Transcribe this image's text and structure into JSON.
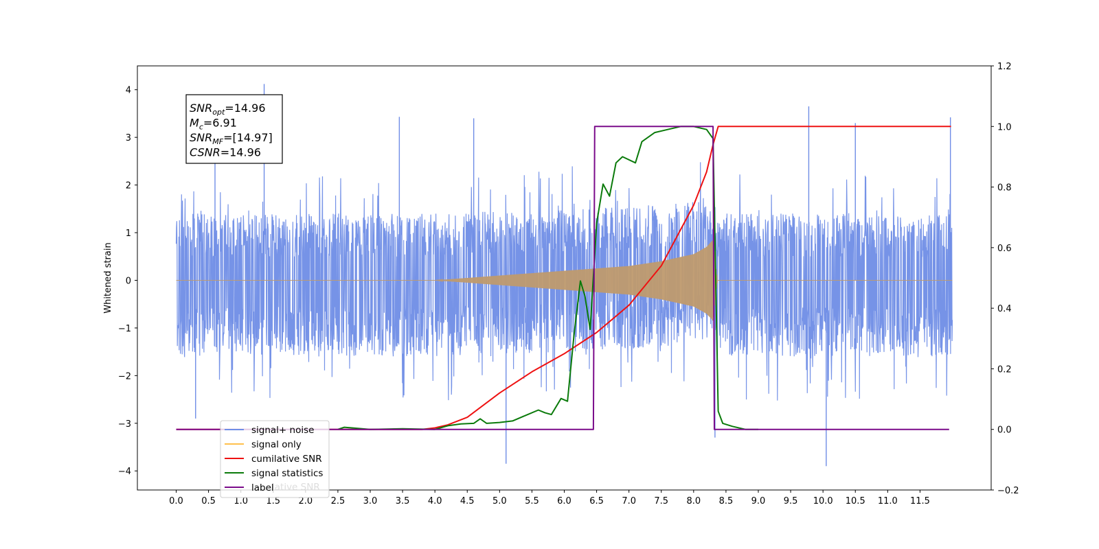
{
  "chart_data": {
    "type": "line",
    "xlabel": "",
    "ylabel": "Whitened strain",
    "y2label": "",
    "xlim": [
      -0.6,
      12.6
    ],
    "ylim": [
      -4.4,
      4.5
    ],
    "y2lim": [
      -0.2,
      1.2
    ],
    "x_ticks": [
      "0.0",
      "0.5",
      "1.0",
      "1.5",
      "2.0",
      "2.5",
      "3.0",
      "3.5",
      "4.0",
      "4.5",
      "5.0",
      "5.5",
      "6.0",
      "6.5",
      "7.0",
      "7.5",
      "8.0",
      "8.5",
      "9.0",
      "9.5",
      "10.0",
      "10.5",
      "11.0",
      "11.5"
    ],
    "y_ticks": [
      "−4",
      "−3",
      "−2",
      "−1",
      "0",
      "1",
      "2",
      "3",
      "4"
    ],
    "y2_ticks": [
      "−0.2",
      "0.0",
      "0.2",
      "0.4",
      "0.6",
      "0.8",
      "1.0",
      "1.2"
    ],
    "grid": false,
    "legend_position": "lower-left",
    "legend": [
      {
        "name": "signal+ noise",
        "color": "#6f8de6"
      },
      {
        "name": "signal only",
        "color": "#ffc04c"
      },
      {
        "name": "cumilative SNR",
        "color": "#ee1111"
      },
      {
        "name": "signal statistics",
        "color": "#0a7a0a"
      },
      {
        "name": "label",
        "color": "#7a0a8a"
      }
    ],
    "legend_ghost_text": "lative SNR",
    "annotation": [
      {
        "base": "SNR",
        "sub": "opt",
        "rest": "=14.96"
      },
      {
        "base": "M",
        "sub": "c",
        "rest": "=6.91"
      },
      {
        "base": "SNR",
        "sub": "MF",
        "rest": "=[14.97]"
      },
      {
        "base": "CSNR",
        "sub": "",
        "rest": "=14.96"
      }
    ],
    "series": [
      {
        "name": "signal+ noise",
        "axis": "left",
        "kind": "noise_band",
        "x_range": [
          0.0,
          12.0
        ],
        "envelope_upper": 1.4,
        "envelope_lower": -1.6,
        "spikes": [
          [
            1.36,
            4.12
          ],
          [
            9.78,
            3.65
          ],
          [
            11.97,
            3.42
          ],
          [
            3.45,
            3.43
          ],
          [
            4.6,
            3.4
          ],
          [
            5.1,
            -3.85
          ],
          [
            10.05,
            -3.9
          ],
          [
            8.33,
            -3.3
          ],
          [
            0.6,
            3.0
          ],
          [
            10.5,
            3.3
          ],
          [
            0.3,
            -2.9
          ]
        ]
      },
      {
        "name": "signal only",
        "axis": "left",
        "kind": "chirp",
        "x": [
          4.0,
          5.0,
          6.0,
          6.5,
          7.0,
          7.5,
          8.0,
          8.2,
          8.3,
          8.37
        ],
        "amplitude": [
          0.0,
          0.1,
          0.2,
          0.25,
          0.3,
          0.4,
          0.55,
          0.7,
          0.85,
          0.0
        ]
      },
      {
        "name": "cumilative SNR",
        "axis": "right",
        "x": [
          0.0,
          3.8,
          4.0,
          4.2,
          4.5,
          5.0,
          5.5,
          6.0,
          6.5,
          7.0,
          7.5,
          8.0,
          8.2,
          8.3,
          8.38,
          8.4,
          11.98
        ],
        "y": [
          0.0,
          0.0,
          0.005,
          0.015,
          0.04,
          0.12,
          0.19,
          0.25,
          0.32,
          0.41,
          0.54,
          0.74,
          0.85,
          0.94,
          1.0,
          1.0,
          1.0
        ]
      },
      {
        "name": "signal statistics",
        "axis": "right",
        "x": [
          2.5,
          2.6,
          3.0,
          3.5,
          4.0,
          4.2,
          4.4,
          4.6,
          4.7,
          4.8,
          5.0,
          5.2,
          5.4,
          5.6,
          5.7,
          5.8,
          5.95,
          6.05,
          6.15,
          6.25,
          6.32,
          6.4,
          6.5,
          6.6,
          6.7,
          6.8,
          6.9,
          7.1,
          7.2,
          7.4,
          7.6,
          7.8,
          8.0,
          8.2,
          8.3,
          8.38,
          8.45,
          8.6,
          8.8,
          9.0
        ],
        "y": [
          0.0,
          0.007,
          0.0,
          0.002,
          0.0,
          0.012,
          0.018,
          0.02,
          0.035,
          0.02,
          0.023,
          0.028,
          0.046,
          0.064,
          0.055,
          0.049,
          0.102,
          0.093,
          0.31,
          0.49,
          0.44,
          0.33,
          0.68,
          0.81,
          0.77,
          0.88,
          0.9,
          0.88,
          0.95,
          0.98,
          0.99,
          1.0,
          1.0,
          0.99,
          0.96,
          0.06,
          0.02,
          0.01,
          0.0,
          0.0
        ]
      },
      {
        "name": "label",
        "axis": "right",
        "x": [
          0.0,
          6.45,
          6.47,
          8.3,
          8.32,
          11.95
        ],
        "y": [
          0.0,
          0.0,
          1.0,
          1.0,
          0.0,
          0.0
        ]
      }
    ]
  }
}
